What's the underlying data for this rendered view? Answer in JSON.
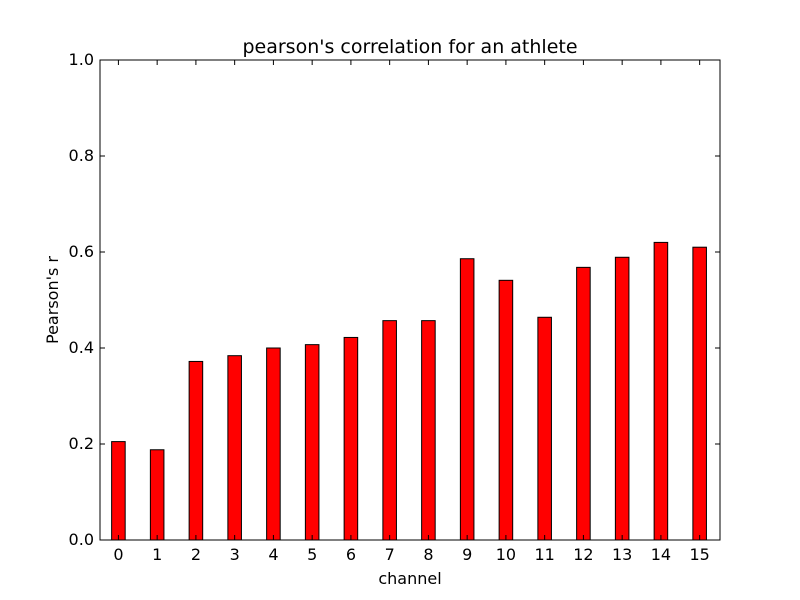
{
  "chart_data": {
    "type": "bar",
    "title": "pearson's correlation for an athlete",
    "xlabel": "channel",
    "ylabel": "Pearson's r",
    "categories": [
      "0",
      "1",
      "2",
      "3",
      "4",
      "5",
      "6",
      "7",
      "8",
      "9",
      "10",
      "11",
      "12",
      "13",
      "14",
      "15"
    ],
    "values": [
      0.205,
      0.188,
      0.372,
      0.384,
      0.4,
      0.407,
      0.422,
      0.457,
      0.457,
      0.586,
      0.541,
      0.464,
      0.568,
      0.589,
      0.62,
      0.61
    ],
    "ylim": [
      0.0,
      1.0
    ],
    "xlim": [
      -0.3,
      15.7
    ],
    "yticks": [
      "0.0",
      "0.2",
      "0.4",
      "0.6",
      "0.8",
      "1.0"
    ],
    "ytick_values": [
      0.0,
      0.2,
      0.4,
      0.6,
      0.8,
      1.0
    ],
    "grid": false,
    "legend": "none",
    "bar_color": "#ff0000",
    "edge_color": "#000000"
  }
}
